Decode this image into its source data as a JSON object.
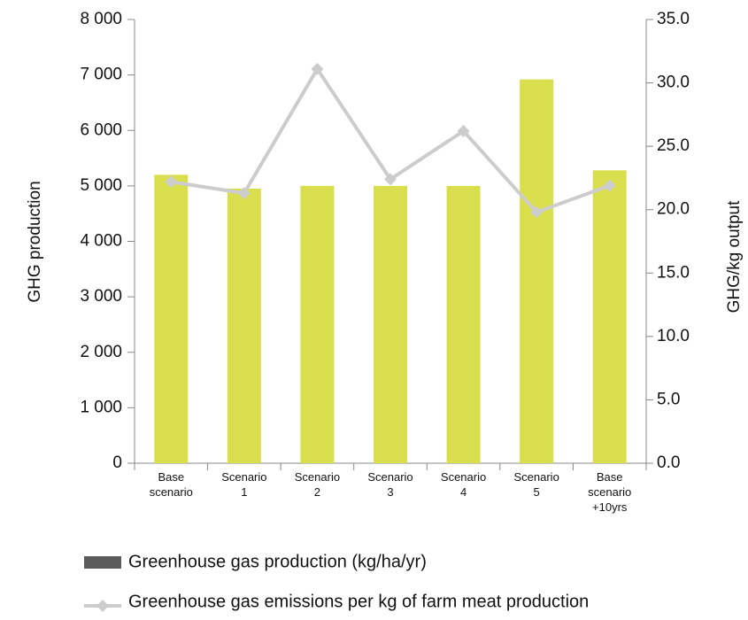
{
  "chart_data": {
    "type": "bar-line",
    "categories": [
      "Base scenario",
      "Scenario 1",
      "Scenario 2",
      "Scenario 3",
      "Scenario 4",
      "Scenario 5",
      "Base scenario +10yrs"
    ],
    "y_label": "GHG production",
    "y2_label": "GHG/kg output",
    "series": [
      {
        "name": "Greenhouse gas production (kg/ha/yr)",
        "type": "bar",
        "axis": "y",
        "color": "#d9df4c",
        "legend_color": "#5a5a5a",
        "values": [
          5200,
          4950,
          5000,
          5000,
          5000,
          6920,
          5280
        ]
      },
      {
        "name": "Greenhouse gas emissions per kg of farm meat production",
        "type": "line",
        "axis": "y2",
        "color": "#cccccc",
        "values": [
          22.2,
          21.3,
          31.1,
          22.4,
          26.2,
          19.8,
          21.9
        ]
      }
    ],
    "ylim": [
      0,
      8000
    ],
    "yticks": [
      0,
      {
        "value": 1000,
        "label": "1 000"
      },
      {
        "value": 2000,
        "label": "2 000"
      },
      {
        "value": 3000,
        "label": "3 000"
      },
      {
        "value": 4000,
        "label": "4 000"
      },
      {
        "value": 5000,
        "label": "5 000"
      },
      {
        "value": 6000,
        "label": "6 000"
      },
      {
        "value": 7000,
        "label": "7 000"
      },
      {
        "value": 8000,
        "label": "8 000"
      }
    ],
    "y2lim": [
      0,
      35
    ],
    "y2ticks": [
      {
        "value": 0,
        "label": "0.0"
      },
      {
        "value": 5,
        "label": "5.0"
      },
      {
        "value": 10,
        "label": "10.0"
      },
      {
        "value": 15,
        "label": "15.0"
      },
      {
        "value": 20,
        "label": "20.0"
      },
      {
        "value": 25,
        "label": "25.0"
      },
      {
        "value": 30,
        "label": "30.0"
      },
      {
        "value": 35,
        "label": "35.0"
      }
    ]
  }
}
